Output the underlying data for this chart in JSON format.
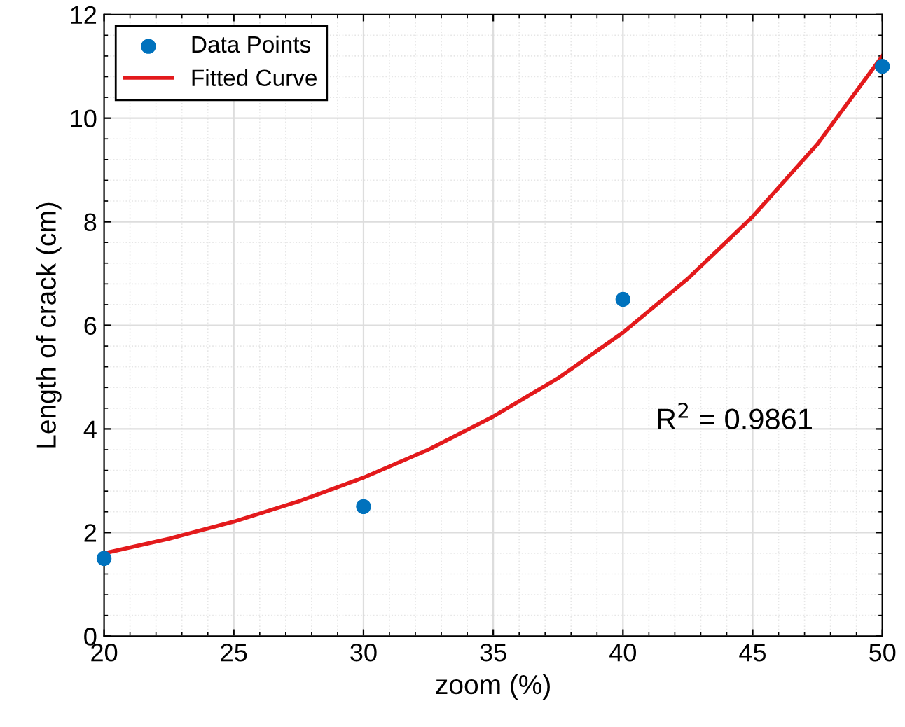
{
  "chart_data": {
    "type": "scatter",
    "xlabel": "zoom (%)",
    "ylabel": "Length of crack (cm)",
    "series": [
      {
        "name": "Data Points",
        "color": "#0072bd",
        "marker": "circle",
        "x": [
          20,
          30,
          40,
          50
        ],
        "values": [
          1.5,
          2.5,
          6.5,
          11
        ]
      },
      {
        "name": "Fitted Curve",
        "type": "line",
        "color": "#e31a1c",
        "line_style": "solid",
        "x": [
          20,
          22.5,
          25,
          27.5,
          30,
          32.5,
          35,
          37.5,
          40,
          42.5,
          45,
          47.5,
          50
        ],
        "values": [
          1.6,
          1.88,
          2.21,
          2.6,
          3.06,
          3.6,
          4.24,
          4.98,
          5.86,
          6.9,
          8.1,
          9.5,
          11.2
        ]
      }
    ],
    "xlim": [
      20,
      50
    ],
    "ylim": [
      0,
      12
    ],
    "xticks": [
      20,
      25,
      30,
      35,
      40,
      45,
      50
    ],
    "yticks": [
      0,
      2,
      4,
      6,
      8,
      10,
      12
    ],
    "grid": true,
    "legend": "top left",
    "annotations": [
      "R$^{2}$ = 0.9861"
    ]
  }
}
